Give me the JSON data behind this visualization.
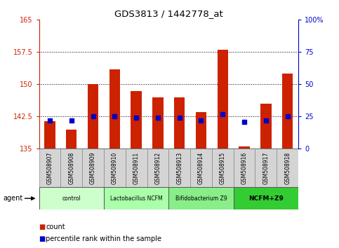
{
  "title": "GDS3813 / 1442778_at",
  "samples": [
    "GSM508907",
    "GSM508908",
    "GSM508909",
    "GSM508910",
    "GSM508911",
    "GSM508912",
    "GSM508913",
    "GSM508914",
    "GSM508915",
    "GSM508916",
    "GSM508917",
    "GSM508918"
  ],
  "count_values": [
    141.5,
    139.5,
    150.0,
    153.5,
    148.5,
    147.0,
    147.0,
    143.5,
    158.0,
    135.5,
    145.5,
    152.5
  ],
  "percentile_values": [
    22,
    22,
    25,
    25,
    24,
    24,
    24,
    22,
    27,
    21,
    22,
    25
  ],
  "groups": [
    {
      "label": "control",
      "start": 0,
      "end": 3,
      "color": "#ccffcc"
    },
    {
      "label": "Lactobacillus NCFM",
      "start": 3,
      "end": 6,
      "color": "#aaffaa"
    },
    {
      "label": "Bifidobacterium Z9",
      "start": 6,
      "end": 9,
      "color": "#88ee88"
    },
    {
      "label": "NCFM+Z9",
      "start": 9,
      "end": 12,
      "color": "#33cc33"
    }
  ],
  "ylim_left": [
    135,
    165
  ],
  "ylim_right": [
    0,
    100
  ],
  "yticks_left": [
    135,
    142.5,
    150,
    157.5,
    165
  ],
  "yticks_right": [
    0,
    25,
    50,
    75,
    100
  ],
  "bar_color": "#cc2200",
  "dot_color": "#0000cc",
  "bar_width": 0.5,
  "dot_size": 18,
  "grid_yticks": [
    142.5,
    150,
    157.5
  ],
  "left_axis_color": "#cc2200",
  "right_axis_color": "#0000cc",
  "legend_count_label": "count",
  "legend_percentile_label": "percentile rank within the sample",
  "label_bg": "#d4d4d4",
  "group_colors": [
    "#ccffcc",
    "#aaffaa",
    "#88ee88",
    "#33cc33"
  ]
}
